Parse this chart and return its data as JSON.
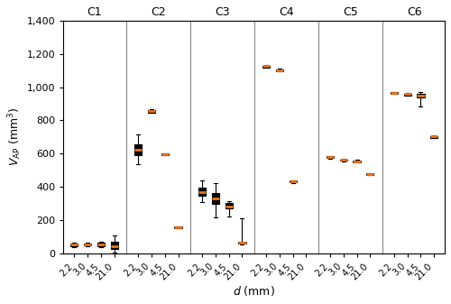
{
  "configurations": [
    "C1",
    "C2",
    "C3",
    "C4",
    "C5",
    "C6"
  ],
  "d_labels": [
    "2.2",
    "3.0",
    "4.5",
    "21.0"
  ],
  "ylabel": "$V_{\\mathrm{AP}}$ (mm$^3$)",
  "xlabel": "$d$ (mm)",
  "ylim": [
    0,
    1400
  ],
  "yticks": [
    0,
    200,
    400,
    600,
    800,
    1000,
    1200,
    1400
  ],
  "ytick_labels": [
    "0",
    "200",
    "400",
    "600",
    "800",
    "1,000",
    "1,200",
    "1,400"
  ],
  "median_color": "#E87722",
  "box_data": {
    "C1": {
      "2.2": {
        "q1": 42,
        "median": 52,
        "q3": 58,
        "whislo": 38,
        "whishi": 65
      },
      "3.0": {
        "q1": 46,
        "median": 54,
        "q3": 60,
        "whislo": 42,
        "whishi": 64
      },
      "4.5": {
        "q1": 43,
        "median": 53,
        "q3": 63,
        "whislo": 36,
        "whishi": 72
      },
      "21.0": {
        "q1": 28,
        "median": 45,
        "q3": 68,
        "whislo": 5,
        "whishi": 108
      }
    },
    "C2": {
      "2.2": {
        "q1": 590,
        "median": 622,
        "q3": 658,
        "whislo": 535,
        "whishi": 718
      },
      "3.0": {
        "q1": 847,
        "median": 854,
        "q3": 860,
        "whislo": 844,
        "whishi": 865
      },
      "4.5": {
        "q1": 593,
        "median": 596,
        "q3": 599,
        "whislo": 591,
        "whishi": 601
      },
      "21.0": {
        "q1": 154,
        "median": 157,
        "q3": 160,
        "whislo": 153,
        "whishi": 161
      }
    },
    "C3": {
      "2.2": {
        "q1": 348,
        "median": 368,
        "q3": 393,
        "whislo": 308,
        "whishi": 438
      },
      "3.0": {
        "q1": 298,
        "median": 333,
        "q3": 362,
        "whislo": 218,
        "whishi": 422
      },
      "4.5": {
        "q1": 272,
        "median": 284,
        "q3": 305,
        "whislo": 222,
        "whishi": 315
      },
      "21.0": {
        "q1": 57,
        "median": 65,
        "q3": 71,
        "whislo": 52,
        "whishi": 210
      }
    },
    "C4": {
      "2.2": {
        "q1": 1118,
        "median": 1125,
        "q3": 1130,
        "whislo": 1116,
        "whishi": 1133
      },
      "3.0": {
        "q1": 1097,
        "median": 1101,
        "q3": 1106,
        "whislo": 1093,
        "whishi": 1109
      },
      "4.5": {
        "q1": 426,
        "median": 432,
        "q3": 437,
        "whislo": 423,
        "whishi": 440
      },
      "21.0": null
    },
    "C5": {
      "2.2": {
        "q1": 573,
        "median": 578,
        "q3": 583,
        "whislo": 570,
        "whishi": 587
      },
      "3.0": {
        "q1": 557,
        "median": 561,
        "q3": 565,
        "whislo": 554,
        "whishi": 569
      },
      "4.5": {
        "q1": 549,
        "median": 554,
        "q3": 559,
        "whislo": 546,
        "whishi": 563
      },
      "21.0": {
        "q1": 472,
        "median": 476,
        "q3": 480,
        "whislo": 471,
        "whishi": 481
      }
    },
    "C6": {
      "2.2": {
        "q1": 961,
        "median": 965,
        "q3": 969,
        "whislo": 958,
        "whishi": 972
      },
      "3.0": {
        "q1": 951,
        "median": 957,
        "q3": 962,
        "whislo": 947,
        "whishi": 966
      },
      "4.5": {
        "q1": 940,
        "median": 950,
        "q3": 960,
        "whislo": 882,
        "whishi": 968
      },
      "21.0": {
        "q1": 696,
        "median": 702,
        "q3": 707,
        "whislo": 693,
        "whishi": 710
      }
    }
  }
}
